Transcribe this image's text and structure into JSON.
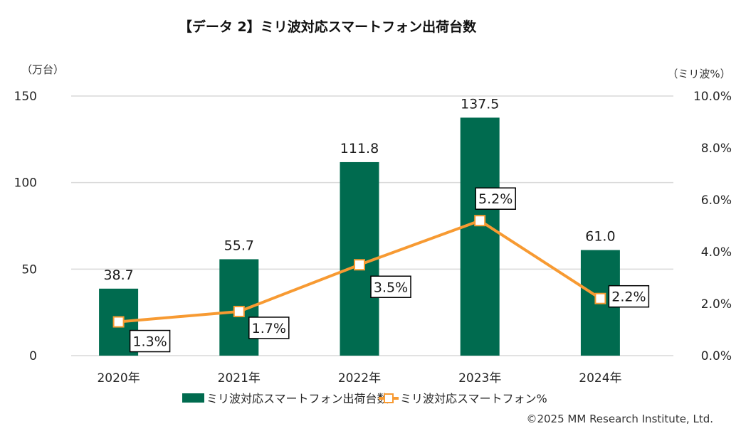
{
  "chart_data": {
    "type": "bar+line",
    "title": "【データ 2】ミリ波対応スマートフォン出荷台数",
    "left_axis_unit": "（万台）",
    "right_axis_unit": "（ミリ波%）",
    "categories": [
      "2020年",
      "2021年",
      "2022年",
      "2023年",
      "2024年"
    ],
    "left_ylim": [
      0,
      150
    ],
    "left_ticks": [
      "0",
      "50",
      "100",
      "150"
    ],
    "left_tick_values": [
      0,
      50,
      100,
      150
    ],
    "right_ylim": [
      0,
      10
    ],
    "right_ticks": [
      "0.0%",
      "2.0%",
      "4.0%",
      "6.0%",
      "8.0%",
      "10.0%"
    ],
    "right_tick_values": [
      0,
      2,
      4,
      6,
      8,
      10
    ],
    "grid": true,
    "series": [
      {
        "name": "ミリ波対応スマートフォン出荷台数",
        "type": "bar",
        "axis": "left",
        "color": "#006B4F",
        "values": [
          38.7,
          55.7,
          111.8,
          137.5,
          61.0
        ],
        "labels": [
          "38.7",
          "55.7",
          "111.8",
          "137.5",
          "61.0"
        ]
      },
      {
        "name": "ミリ波対応スマートフォン%",
        "type": "line",
        "axis": "right",
        "color": "#F79A32",
        "values": [
          1.3,
          1.7,
          3.5,
          5.2,
          2.2
        ],
        "labels": [
          "1.3%",
          "1.7%",
          "3.5%",
          "5.2%",
          "2.2%"
        ]
      }
    ],
    "legend_position": "bottom",
    "footer": "©2025 MM Research Institute, Ltd."
  }
}
